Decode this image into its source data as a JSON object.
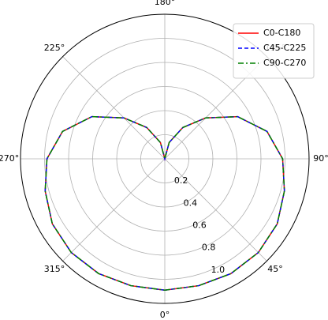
{
  "chart_data": {
    "type": "polar",
    "x": [
      0,
      15,
      30,
      45,
      60,
      75,
      90,
      105,
      120,
      135,
      150,
      165,
      180,
      195,
      210,
      225,
      240,
      255,
      270,
      285,
      300,
      315,
      330,
      345,
      360
    ],
    "series": [
      {
        "name": "C0-C180",
        "color": "#ff0000",
        "dash": "solid",
        "values": [
          1.09,
          1.09,
          1.1,
          1.1,
          1.08,
          1.03,
          0.98,
          0.88,
          0.7,
          0.48,
          0.3,
          0.14,
          0,
          0.14,
          0.3,
          0.48,
          0.7,
          0.88,
          0.98,
          1.03,
          1.08,
          1.1,
          1.1,
          1.09,
          1.09
        ]
      },
      {
        "name": "C45-C225",
        "color": "#0000ff",
        "dash": "dashed",
        "values": [
          1.09,
          1.09,
          1.1,
          1.1,
          1.08,
          1.03,
          0.98,
          0.88,
          0.7,
          0.48,
          0.3,
          0.14,
          0,
          0.14,
          0.3,
          0.48,
          0.7,
          0.88,
          0.98,
          1.03,
          1.08,
          1.1,
          1.1,
          1.09,
          1.09
        ]
      },
      {
        "name": "C90-C270",
        "color": "#008000",
        "dash": "dashdot",
        "values": [
          1.09,
          1.09,
          1.1,
          1.1,
          1.08,
          1.03,
          0.98,
          0.88,
          0.7,
          0.48,
          0.3,
          0.14,
          0,
          0.14,
          0.3,
          0.48,
          0.7,
          0.88,
          0.98,
          1.03,
          1.08,
          1.1,
          1.1,
          1.09,
          1.09
        ]
      }
    ],
    "ylim": [
      0,
      1.2
    ],
    "yticks": [
      0.2,
      0.4,
      0.6,
      0.8,
      {
        "value": 1.0,
        "label": "1.0"
      }
    ],
    "xticks": [
      {
        "value": 0,
        "label": "0°"
      },
      {
        "value": 45,
        "label": "45°"
      },
      {
        "value": 90,
        "label": "90°"
      },
      {
        "value": 135,
        "label": "135°"
      },
      {
        "value": 180,
        "label": "180°"
      },
      {
        "value": 225,
        "label": "225°"
      },
      {
        "value": 270,
        "label": "270°"
      },
      {
        "value": 315,
        "label": "315°"
      }
    ],
    "grid": true,
    "legend": "upper right"
  }
}
